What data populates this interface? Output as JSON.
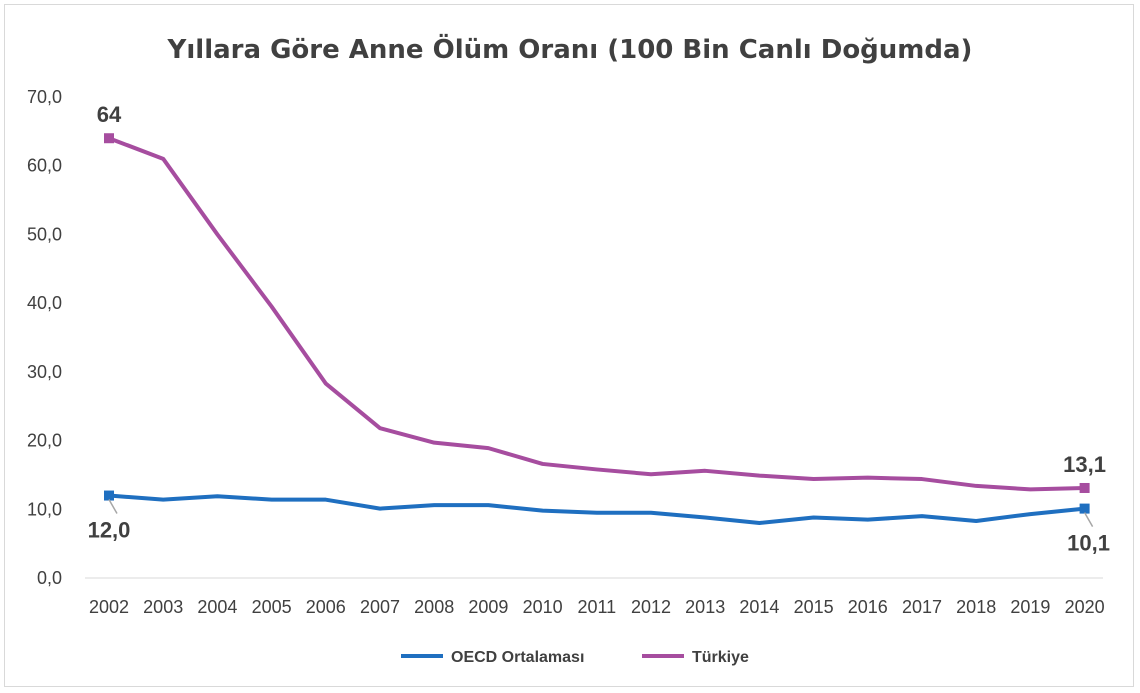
{
  "chart_data": {
    "type": "line",
    "title": "Yıllara Göre Anne Ölüm Oranı (100 Bin Canlı Doğumda)",
    "xlabel": "",
    "ylabel": "",
    "categories": [
      "2002",
      "2003",
      "2004",
      "2005",
      "2006",
      "2007",
      "2008",
      "2009",
      "2010",
      "2011",
      "2012",
      "2013",
      "2014",
      "2015",
      "2016",
      "2017",
      "2018",
      "2019",
      "2020"
    ],
    "ylim": [
      0,
      70
    ],
    "yticks": [
      "0,0",
      "10,0",
      "20,0",
      "30,0",
      "40,0",
      "50,0",
      "60,0",
      "70,0"
    ],
    "grid": false,
    "legend_position": "bottom",
    "series": [
      {
        "name": "OECD Ortalaması",
        "color": "#1f6fc0",
        "values": [
          12.0,
          11.4,
          11.9,
          11.4,
          11.4,
          10.1,
          10.6,
          10.6,
          9.8,
          9.5,
          9.5,
          8.8,
          8.0,
          8.8,
          8.5,
          9.0,
          8.3,
          9.3,
          10.1
        ]
      },
      {
        "name": "Türkiye",
        "color": "#a64d9f",
        "values": [
          64,
          61,
          50,
          39.5,
          28.3,
          21.8,
          19.7,
          18.9,
          16.6,
          15.8,
          15.1,
          15.6,
          14.9,
          14.4,
          14.6,
          14.4,
          13.4,
          12.9,
          13.1
        ]
      }
    ],
    "data_labels": [
      {
        "series": 1,
        "index": 0,
        "text": "64",
        "position": "above"
      },
      {
        "series": 1,
        "index": 18,
        "text": "13,1",
        "position": "above"
      },
      {
        "series": 0,
        "index": 0,
        "text": "12,0",
        "position": "below"
      },
      {
        "series": 0,
        "index": 18,
        "text": "10,1",
        "position": "below"
      }
    ]
  }
}
